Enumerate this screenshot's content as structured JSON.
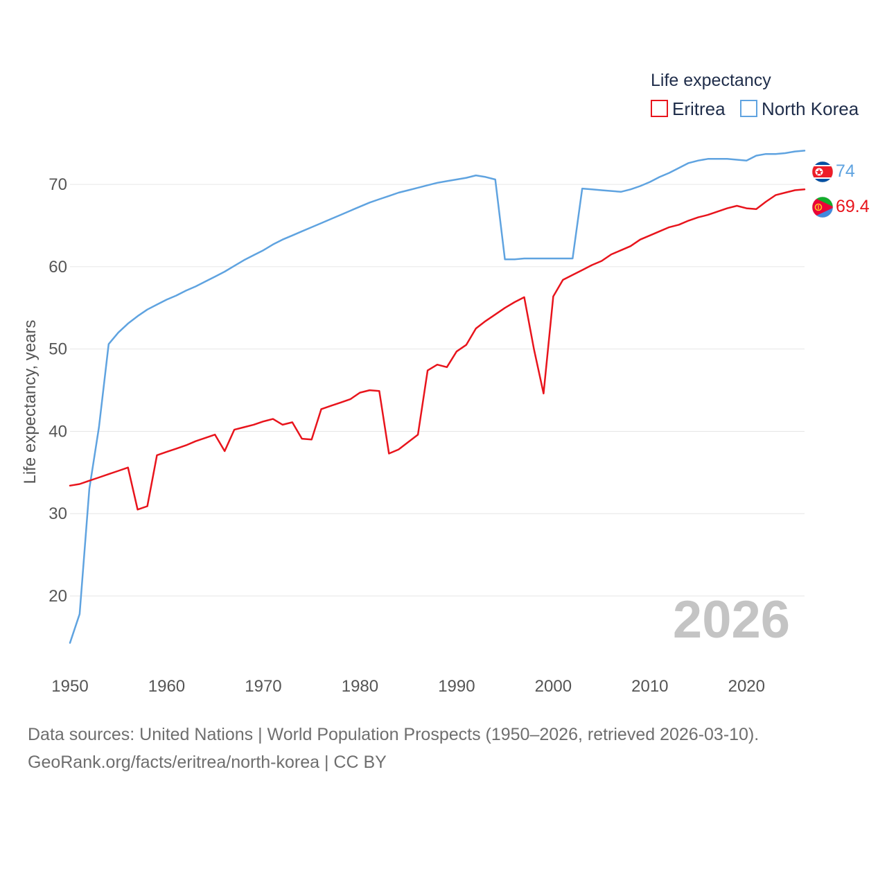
{
  "chart_data": {
    "type": "line",
    "legend_title": "Life expectancy",
    "ylabel": "Life expectancy, years",
    "xlabel": "",
    "xlim": [
      1950,
      2026
    ],
    "ylim": [
      12,
      77
    ],
    "x_ticks": [
      1950,
      1960,
      1970,
      1980,
      1990,
      2000,
      2010,
      2020
    ],
    "y_ticks": [
      20,
      30,
      40,
      50,
      60,
      70
    ],
    "current_year": "2026",
    "legend_position": "top-right",
    "x": [
      1950,
      1951,
      1952,
      1953,
      1954,
      1955,
      1956,
      1957,
      1958,
      1959,
      1960,
      1961,
      1962,
      1963,
      1964,
      1965,
      1966,
      1967,
      1968,
      1969,
      1970,
      1971,
      1972,
      1973,
      1974,
      1975,
      1976,
      1977,
      1978,
      1979,
      1980,
      1981,
      1982,
      1983,
      1984,
      1985,
      1986,
      1987,
      1988,
      1989,
      1990,
      1991,
      1992,
      1993,
      1994,
      1995,
      1996,
      1997,
      1998,
      1999,
      2000,
      2001,
      2002,
      2003,
      2004,
      2005,
      2006,
      2007,
      2008,
      2009,
      2010,
      2011,
      2012,
      2013,
      2014,
      2015,
      2016,
      2017,
      2018,
      2019,
      2020,
      2021,
      2022,
      2023,
      2024,
      2025,
      2026
    ],
    "series": [
      {
        "name": "North Korea",
        "color": "#5fa3e0",
        "end_label": "74",
        "flag": "north-korea-flag-icon",
        "values": [
          14.3,
          17.8,
          33.0,
          40.5,
          50.6,
          52.0,
          53.1,
          54.0,
          54.8,
          55.4,
          56.0,
          56.5,
          57.1,
          57.6,
          58.2,
          58.8,
          59.4,
          60.1,
          60.8,
          61.4,
          62.0,
          62.7,
          63.3,
          63.8,
          64.3,
          64.8,
          65.3,
          65.8,
          66.3,
          66.8,
          67.3,
          67.8,
          68.2,
          68.6,
          69.0,
          69.3,
          69.6,
          69.9,
          70.2,
          70.4,
          70.6,
          70.8,
          71.1,
          70.9,
          70.6,
          60.9,
          60.9,
          61.0,
          61.0,
          61.0,
          61.0,
          61.0,
          61.0,
          69.5,
          69.4,
          69.3,
          69.2,
          69.1,
          69.4,
          69.8,
          70.3,
          70.9,
          71.4,
          72.0,
          72.6,
          72.9,
          73.1,
          73.1,
          73.1,
          73.0,
          72.9,
          73.5,
          73.7,
          73.7,
          73.8,
          74.0,
          74.1
        ]
      },
      {
        "name": "Eritrea",
        "color": "#e8141c",
        "end_label": "69.4",
        "flag": "eritrea-flag-icon",
        "values": [
          33.4,
          33.6,
          34.0,
          34.4,
          34.8,
          35.2,
          35.6,
          30.5,
          30.9,
          37.1,
          37.5,
          37.9,
          38.3,
          38.8,
          39.2,
          39.6,
          37.6,
          40.2,
          40.5,
          40.8,
          41.2,
          41.5,
          40.8,
          41.1,
          39.1,
          39.0,
          42.7,
          43.1,
          43.5,
          43.9,
          44.7,
          45.0,
          44.9,
          37.3,
          37.8,
          38.7,
          39.6,
          47.4,
          48.1,
          47.8,
          49.7,
          50.5,
          52.5,
          53.4,
          54.2,
          55.0,
          55.7,
          56.3,
          50.0,
          44.6,
          56.4,
          58.4,
          59.0,
          59.6,
          60.2,
          60.7,
          61.5,
          62.0,
          62.5,
          63.3,
          63.8,
          64.3,
          64.8,
          65.1,
          65.6,
          66.0,
          66.3,
          66.7,
          67.1,
          67.4,
          67.1,
          67.0,
          67.9,
          68.7,
          69.0,
          69.3,
          69.4
        ]
      }
    ]
  },
  "source": {
    "line1": "Data sources: United Nations | World Population Prospects (1950–2026, retrieved 2026-03-10).",
    "line2": "GeoRank.org/facts/eritrea/north-korea | CC BY"
  }
}
